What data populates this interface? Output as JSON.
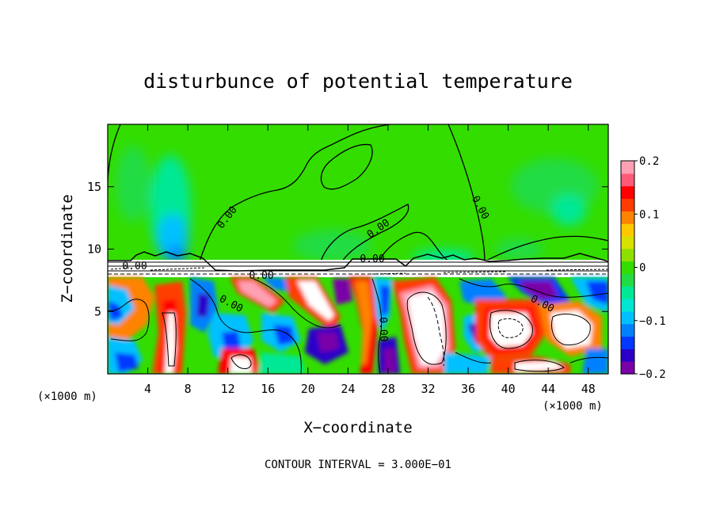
{
  "chart_data": {
    "type": "heatmap",
    "title": "disturbunce of potential temperature",
    "xlabel": "X−coordinate",
    "ylabel": "Z−coordinate",
    "x_unit_left": "(×1000 m)",
    "x_unit_right": "(×1000 m)",
    "xlim": [
      0,
      50
    ],
    "ylim": [
      0,
      20
    ],
    "x_ticks": [
      4,
      8,
      12,
      16,
      20,
      24,
      28,
      32,
      36,
      40,
      44,
      48
    ],
    "x_tick_labels": [
      "4",
      "8",
      "12",
      "16",
      "20",
      "24",
      "28",
      "32",
      "36",
      "40",
      "44",
      "48"
    ],
    "y_ticks": [
      5,
      10,
      15
    ],
    "y_tick_labels": [
      "5",
      "10",
      "15"
    ],
    "colorbar": {
      "min": -0.2,
      "max": 0.2,
      "ticks": [
        0.2,
        0.1,
        0,
        -0.1,
        -0.2
      ],
      "tick_labels": [
        "0.2",
        "0.1",
        "0",
        "−0.1",
        "−0.2"
      ],
      "colors": [
        "#7a00a8",
        "#2a00c8",
        "#0038ff",
        "#0080ff",
        "#00c0ff",
        "#00e6d2",
        "#00e896",
        "#22dc44",
        "#33dd00",
        "#8ee000",
        "#d8e000",
        "#ffc800",
        "#ff8200",
        "#ff3c00",
        "#ff0000",
        "#ff5a78",
        "#ffa0b4"
      ]
    },
    "contour_labels": [
      "0.00",
      "0.00",
      "0.00",
      "0.00",
      "0.00",
      "0.00",
      "0.00",
      "0.00",
      "0.00"
    ],
    "footer": "CONTOUR INTERVAL = 3.000E−01"
  }
}
